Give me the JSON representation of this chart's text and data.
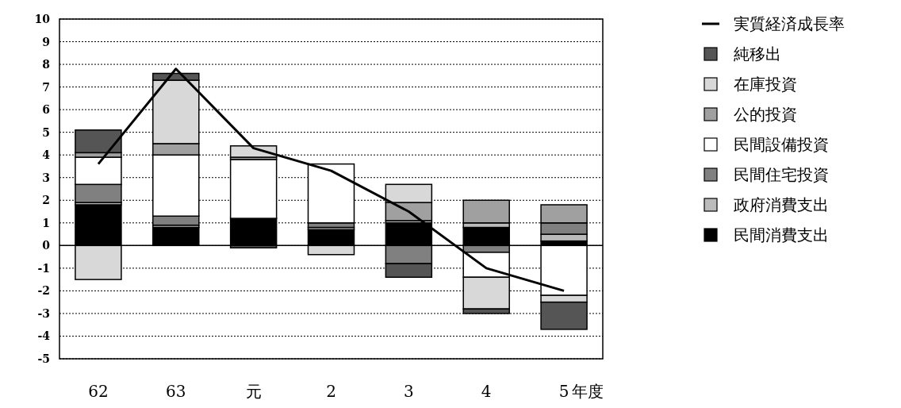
{
  "chart_data": {
    "type": "bar",
    "stacked": true,
    "xlabel": "年度",
    "categories": [
      "62",
      "63",
      "元",
      "2",
      "3",
      "4",
      "5"
    ],
    "ylim": [
      -5,
      10
    ],
    "yticks": [
      -5,
      -4,
      -3,
      -2,
      -1,
      0,
      1,
      2,
      3,
      4,
      5,
      6,
      7,
      8,
      9,
      10
    ],
    "grid": "y",
    "legend": "right",
    "ref_lines": [
      {
        "axis": "y",
        "value": 0,
        "color": "#000000",
        "line_style": "solid"
      }
    ],
    "series": [
      {
        "name": "民間消費支出",
        "color": "#000000",
        "values": [
          1.8,
          0.8,
          1.2,
          0.7,
          1.0,
          0.8,
          0.2
        ]
      },
      {
        "name": "政府消費支出",
        "color": "#bbbbbb",
        "values": [
          0.1,
          0.1,
          0,
          0.1,
          0.1,
          0.2,
          0.3
        ]
      },
      {
        "name": "民間住宅投資",
        "color": "#808080",
        "values": [
          0.8,
          0.4,
          0,
          0.2,
          -0.8,
          -0.3,
          0.5
        ]
      },
      {
        "name": "民間設備投資",
        "color": "#ffffff",
        "values": [
          1.2,
          2.7,
          2.6,
          2.6,
          0,
          -1.1,
          -2.2
        ]
      },
      {
        "name": "公的投資",
        "color": "#a0a0a0",
        "values": [
          0.2,
          0.5,
          0.1,
          0,
          0.8,
          1.0,
          0.8
        ]
      },
      {
        "name": "在庫投資",
        "color": "#d8d8d8",
        "values": [
          -1.5,
          2.8,
          0.5,
          -0.4,
          0.8,
          -1.4,
          -0.3
        ]
      },
      {
        "name": "純移出",
        "color": "#555555",
        "values": [
          1.0,
          0.3,
          -0.1,
          0,
          -0.6,
          -0.2,
          -1.2
        ]
      },
      {
        "name": "実質経済成長率",
        "type": "line",
        "color": "#000000",
        "values": [
          3.6,
          7.8,
          4.3,
          3.3,
          1.5,
          -1.0,
          -2.0
        ]
      }
    ]
  }
}
